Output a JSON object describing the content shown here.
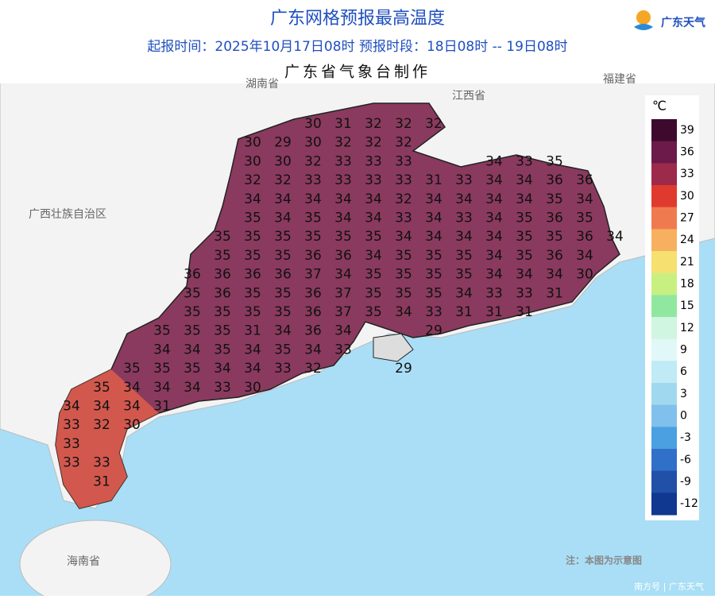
{
  "header": {
    "title": "广东网格预报最高温度",
    "subtitle": "起报时间：2025年10月17日08时   预报时段：18日08时 -- 19日08时",
    "producer": "广东省气象台制作",
    "logo": "广东天气"
  },
  "regions": [
    "湖南省",
    "江西省",
    "福建省",
    "广西壮族自治区",
    "海南省"
  ],
  "legend": {
    "unit": "℃",
    "ticks": [
      39,
      36,
      33,
      30,
      27,
      24,
      21,
      18,
      15,
      12,
      9,
      6,
      3,
      0,
      -3,
      -6,
      -9,
      -12
    ],
    "colors": [
      "#3d0a2e",
      "#6b1a4a",
      "#9c2a4a",
      "#e03a2e",
      "#f07a50",
      "#f7b060",
      "#f5e070",
      "#c8f080",
      "#90e8a0",
      "#d0f5e0",
      "#e0f8f8",
      "#c0eaf5",
      "#a0d8f0",
      "#80c0ec",
      "#4aa0e0",
      "#3070c8",
      "#2050a8",
      "#103890"
    ]
  },
  "grid": {
    "rows": [
      [
        null,
        null,
        null,
        null,
        null,
        null,
        null,
        null,
        30,
        31,
        32,
        32,
        32,
        null,
        null,
        null,
        null,
        null,
        null
      ],
      [
        null,
        null,
        null,
        null,
        null,
        null,
        30,
        29,
        30,
        32,
        32,
        32,
        null,
        null,
        null,
        null,
        null,
        null,
        null
      ],
      [
        null,
        null,
        null,
        null,
        null,
        null,
        30,
        30,
        32,
        33,
        33,
        33,
        null,
        null,
        34,
        33,
        35,
        null,
        null
      ],
      [
        null,
        null,
        null,
        null,
        null,
        null,
        32,
        32,
        33,
        33,
        33,
        33,
        31,
        33,
        34,
        34,
        36,
        36,
        null
      ],
      [
        null,
        null,
        null,
        null,
        null,
        null,
        34,
        34,
        34,
        34,
        34,
        32,
        34,
        34,
        34,
        34,
        35,
        34,
        null
      ],
      [
        null,
        null,
        null,
        null,
        null,
        null,
        35,
        34,
        35,
        34,
        34,
        33,
        34,
        33,
        34,
        35,
        36,
        35,
        null
      ],
      [
        null,
        null,
        null,
        null,
        null,
        35,
        35,
        35,
        35,
        35,
        35,
        34,
        34,
        34,
        34,
        35,
        35,
        36,
        34
      ],
      [
        null,
        null,
        null,
        null,
        null,
        35,
        35,
        35,
        36,
        36,
        34,
        35,
        35,
        35,
        34,
        35,
        36,
        34,
        null
      ],
      [
        null,
        null,
        null,
        null,
        36,
        36,
        36,
        36,
        37,
        34,
        35,
        35,
        35,
        35,
        34,
        34,
        34,
        30,
        null
      ],
      [
        null,
        null,
        null,
        null,
        35,
        36,
        35,
        35,
        36,
        37,
        35,
        35,
        35,
        34,
        33,
        33,
        31,
        null,
        null
      ],
      [
        null,
        null,
        null,
        null,
        35,
        35,
        35,
        35,
        36,
        37,
        35,
        34,
        33,
        31,
        31,
        31,
        null,
        null,
        null
      ],
      [
        null,
        null,
        null,
        35,
        35,
        35,
        31,
        34,
        36,
        34,
        null,
        null,
        29,
        null,
        null,
        null,
        null,
        null,
        null
      ],
      [
        null,
        null,
        null,
        34,
        34,
        35,
        34,
        35,
        34,
        33,
        null,
        null,
        null,
        null,
        null,
        null,
        null,
        null,
        null
      ],
      [
        null,
        null,
        35,
        35,
        35,
        34,
        34,
        33,
        32,
        null,
        null,
        29,
        null,
        null,
        null,
        null,
        null,
        null,
        null
      ],
      [
        null,
        35,
        34,
        34,
        34,
        33,
        30,
        null,
        null,
        null,
        null,
        null,
        null,
        null,
        null,
        null,
        null,
        null,
        null
      ],
      [
        34,
        34,
        34,
        31,
        null,
        null,
        null,
        null,
        null,
        null,
        null,
        null,
        null,
        null,
        null,
        null,
        null,
        null,
        null
      ],
      [
        33,
        32,
        30,
        null,
        null,
        null,
        null,
        null,
        null,
        null,
        null,
        null,
        null,
        null,
        null,
        null,
        null,
        null,
        null
      ],
      [
        33,
        null,
        null,
        null,
        null,
        null,
        null,
        null,
        null,
        null,
        null,
        null,
        null,
        null,
        null,
        null,
        null,
        null,
        null
      ],
      [
        33,
        33,
        null,
        null,
        null,
        null,
        null,
        null,
        null,
        null,
        null,
        null,
        null,
        null,
        null,
        null,
        null,
        null,
        null
      ],
      [
        null,
        31,
        null,
        null,
        null,
        null,
        null,
        null,
        null,
        null,
        null,
        null,
        null,
        null,
        null,
        null,
        null,
        null,
        null
      ]
    ]
  },
  "footer": {
    "note": "注：本图为示意图",
    "source": "南方号 | 广东天气"
  }
}
